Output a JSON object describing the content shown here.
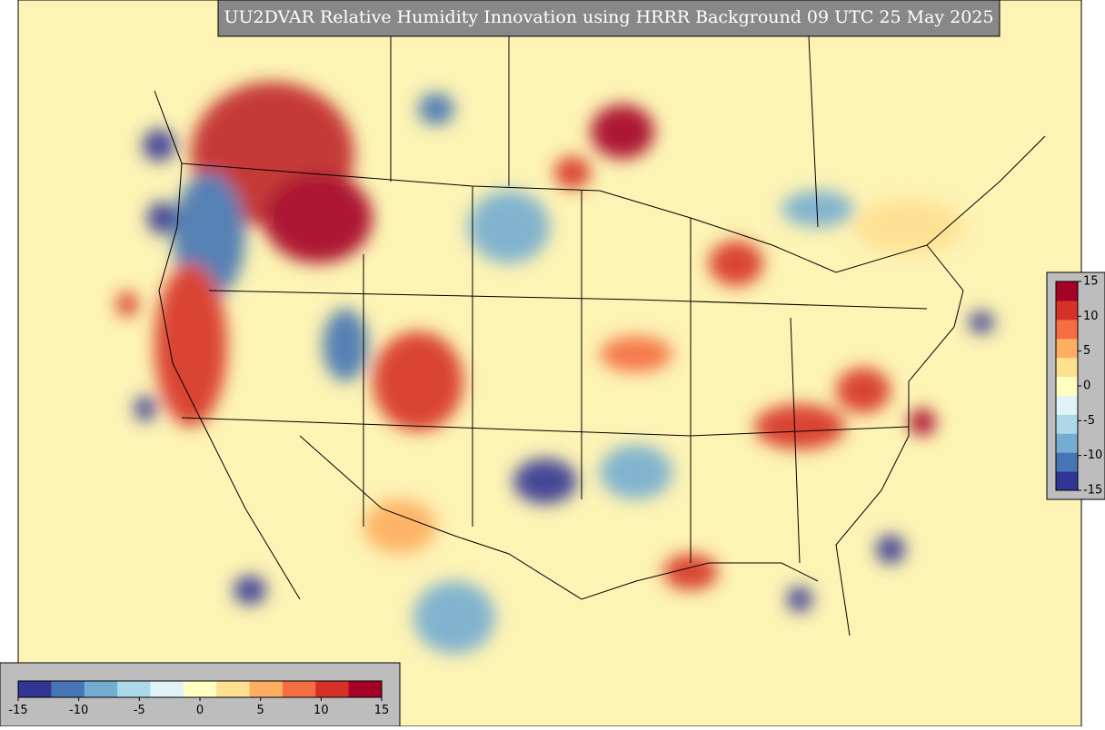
{
  "title": "UU2DVAR Relative Humidity Innovation using HRRR Background 09 UTC 25 May 2025",
  "colorbar_bottom": {
    "lim": [
      -15,
      15
    ],
    "ticks": [
      -15,
      -10,
      -5,
      0,
      5,
      10,
      15
    ]
  },
  "colorbar_right": {
    "lim": [
      -15,
      15
    ],
    "ticks": [
      15,
      10,
      5,
      0,
      -5,
      -10,
      -15
    ]
  },
  "colormap": [
    "#313695",
    "#4575b4",
    "#74add1",
    "#abd9e9",
    "#e0f3f8",
    "#ffffbf",
    "#fee090",
    "#fdae61",
    "#f46d43",
    "#d73027",
    "#a50026"
  ]
}
